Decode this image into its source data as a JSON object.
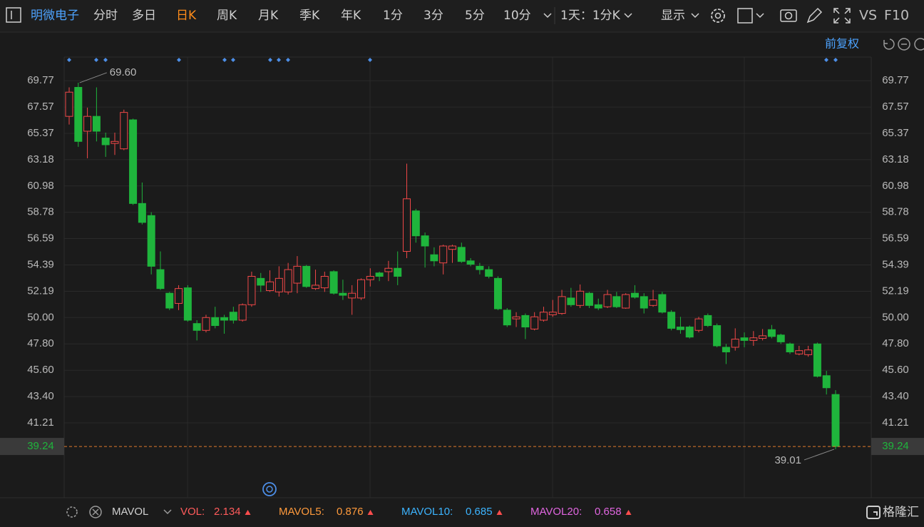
{
  "toolbar": {
    "stock": "明微电子",
    "tabs": [
      "分时",
      "多日",
      "日K",
      "周K",
      "月K",
      "季K",
      "年K",
      "1分",
      "3分",
      "5分",
      "10分"
    ],
    "active_tab": 2,
    "period": "1天：1分K",
    "display": "显示",
    "vs": "VS",
    "f10": "F10"
  },
  "adjust": "前复权",
  "chart_data": {
    "type": "candlestick",
    "open": [
      66.79,
      69.21,
      65.55,
      66.79,
      64.98,
      64.53,
      64.08,
      66.5,
      59.52,
      58.51,
      54.0,
      52.03,
      51.18,
      52.48,
      49.5,
      48.93,
      50.0,
      50.0,
      50.45,
      49.78,
      51.07,
      53.27,
      52.25,
      52.14,
      52.14,
      52.87,
      54.28,
      52.42,
      52.48,
      53.83,
      52.03,
      51.63,
      51.63,
      53.16,
      53.72,
      53.83,
      54.11,
      55.52,
      58.9,
      56.82,
      55.24,
      54.56,
      55.69,
      55.86,
      54.73,
      54.28,
      54.0,
      53.27,
      50.62,
      49.89,
      50.17,
      49.04,
      49.78,
      50.23,
      50.34,
      51.63,
      51.01,
      52.03,
      51.07,
      50.9,
      51.75,
      50.79,
      52.03,
      51.75,
      51.01,
      51.92,
      50.45,
      49.21,
      49.21,
      48.93,
      50.17,
      49.33,
      47.52,
      47.52,
      48.31,
      48.09,
      48.26,
      48.99,
      48.54,
      47.8,
      46.96,
      46.9,
      47.8,
      45.15,
      43.58
    ],
    "high": [
      69.21,
      69.6,
      67.52,
      69.21,
      65.43,
      65.43,
      67.35,
      66.6,
      61.27,
      58.79,
      55.52,
      52.14,
      52.7,
      52.7,
      49.78,
      50.23,
      50.9,
      50.23,
      50.9,
      51.18,
      53.83,
      53.72,
      53.94,
      54.28,
      54.56,
      55.13,
      54.39,
      54.0,
      53.83,
      53.94,
      53.16,
      52.7,
      53.27,
      54.11,
      53.83,
      54.73,
      55.52,
      62.84,
      59.07,
      57.1,
      55.86,
      56.08,
      56.08,
      56.25,
      54.96,
      54.56,
      54.28,
      53.44,
      50.79,
      50.45,
      50.34,
      50.45,
      50.9,
      51.47,
      52.31,
      52.48,
      52.76,
      52.14,
      51.58,
      52.31,
      52.14,
      52.03,
      52.7,
      52.03,
      52.31,
      52.14,
      50.62,
      50.06,
      49.33,
      50.06,
      50.34,
      49.5,
      47.8,
      49.1,
      48.76,
      48.87,
      49.04,
      49.38,
      48.65,
      47.91,
      47.64,
      47.64,
      47.91,
      45.55,
      43.94
    ],
    "low": [
      66.11,
      64.25,
      63.29,
      64.7,
      63.41,
      63.57,
      63.97,
      59.4,
      57.77,
      53.6,
      52.3,
      50.62,
      50.62,
      49.66,
      48.09,
      48.76,
      49.1,
      48.65,
      49.5,
      49.66,
      50.9,
      52.14,
      52.14,
      51.75,
      51.92,
      52.03,
      52.48,
      52.3,
      52.14,
      51.92,
      51.47,
      50.23,
      51.47,
      52.59,
      53.04,
      53.04,
      52.7,
      54.96,
      56.25,
      54.17,
      54.28,
      53.6,
      54.56,
      54.56,
      54.28,
      53.6,
      53.27,
      50.62,
      49.21,
      49.21,
      48.2,
      48.93,
      49.66,
      50.06,
      50.23,
      50.9,
      50.79,
      50.79,
      50.62,
      50.79,
      50.79,
      50.73,
      51.58,
      50.34,
      50.9,
      50.34,
      48.93,
      48.65,
      48.25,
      48.76,
      49.21,
      47.52,
      46.12,
      47.24,
      47.52,
      47.64,
      48.09,
      48.26,
      47.8,
      46.96,
      46.85,
      46.73,
      45.0,
      43.58,
      39.01
    ],
    "close": [
      68.81,
      64.7,
      66.79,
      65.55,
      64.42,
      64.7,
      67.12,
      59.52,
      57.94,
      54.28,
      52.42,
      50.79,
      52.42,
      49.78,
      48.93,
      50.0,
      49.33,
      49.78,
      49.78,
      51.07,
      53.44,
      52.7,
      52.98,
      53.27,
      54.0,
      54.28,
      52.59,
      52.7,
      53.44,
      52.03,
      51.86,
      52.03,
      53.16,
      53.44,
      53.44,
      54.11,
      53.44,
      59.91,
      56.82,
      55.97,
      54.73,
      55.97,
      55.97,
      54.68,
      54.45,
      54.0,
      53.44,
      50.73,
      49.38,
      50.06,
      49.21,
      50.06,
      50.45,
      50.45,
      51.75,
      51.07,
      52.2,
      51.01,
      50.79,
      51.92,
      50.9,
      51.92,
      51.7,
      50.79,
      51.47,
      50.45,
      49.1,
      48.99,
      48.37,
      49.89,
      49.33,
      47.64,
      47.13,
      48.2,
      48.09,
      48.31,
      48.48,
      48.42,
      47.97,
      47.13,
      47.24,
      47.3,
      45.1,
      44.14,
      39.24
    ],
    "up_color": "#f04848",
    "down_color": "#1fb53c",
    "ylim": [
      34.96,
      71.74
    ],
    "yticks": [
      69.77,
      67.57,
      65.37,
      63.18,
      60.98,
      58.78,
      56.59,
      54.39,
      52.19,
      {
        "value": 50,
        "label": "50.00"
      },
      {
        "value": 47.8,
        "label": "47.80"
      },
      {
        "value": 45.6,
        "label": "45.60"
      },
      {
        "value": 43.4,
        "label": "43.40"
      },
      41.21
    ],
    "grid": true,
    "max_label": "69.60",
    "min_label": "39.01"
  },
  "indicator": {
    "name": "MAVOL",
    "items": [
      {
        "label": "VOL:",
        "value": 2.134,
        "color": "#ff5b5b"
      },
      {
        "label": "MAVOL5:",
        "value": 0.876,
        "color": "#ff9a3c"
      },
      {
        "label": "MAVOL10:",
        "value": 0.685,
        "color": "#3cb4ff"
      },
      {
        "label": "MAVOL20:",
        "value": 0.658,
        "color": "#e066e0"
      }
    ]
  },
  "brand": "格隆汇"
}
